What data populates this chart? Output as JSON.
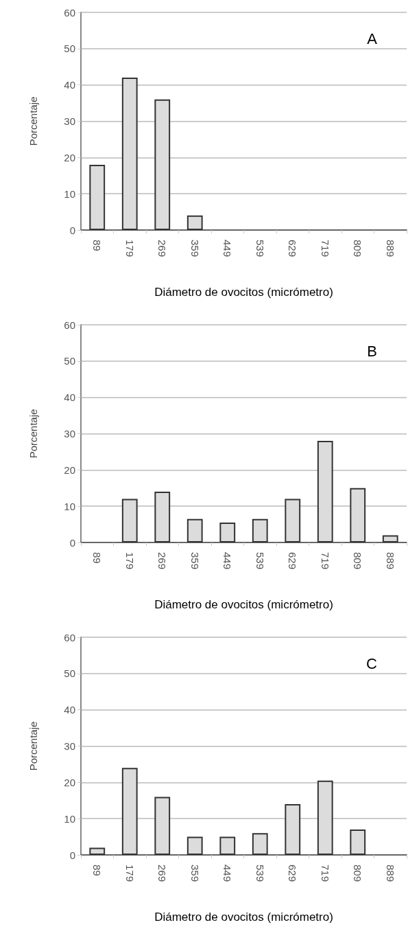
{
  "chart_data": [
    {
      "type": "bar",
      "annotations": [
        "A"
      ],
      "xlabel": "Diámetro de ovocitos (micrómetro)",
      "ylabel": "Porcentaje",
      "categories": [
        "89",
        "179",
        "269",
        "359",
        "449",
        "539",
        "629",
        "719",
        "809",
        "889"
      ],
      "values": [
        18,
        42,
        36,
        4,
        0,
        0,
        0,
        0,
        0,
        0
      ],
      "color": "#dcdcdc",
      "ylim": [
        0,
        60
      ],
      "yticks": [
        0,
        10,
        20,
        30,
        40,
        50,
        60
      ],
      "grid": "y"
    },
    {
      "type": "bar",
      "annotations": [
        "B"
      ],
      "xlabel": "Diámetro de ovocitos (micrómetro)",
      "ylabel": "Porcentaje",
      "categories": [
        "89",
        "179",
        "269",
        "359",
        "449",
        "539",
        "629",
        "719",
        "809",
        "889"
      ],
      "values": [
        0,
        12,
        14,
        6.5,
        5.5,
        6.5,
        12,
        28,
        15,
        2
      ],
      "color": "#dcdcdc",
      "ylim": [
        0,
        60
      ],
      "yticks": [
        0,
        10,
        20,
        30,
        40,
        50,
        60
      ],
      "grid": "y"
    },
    {
      "type": "bar",
      "annotations": [
        "C"
      ],
      "xlabel": "Diámetro de ovocitos (micrómetro)",
      "ylabel": "Porcentaje",
      "categories": [
        "89",
        "179",
        "269",
        "359",
        "449",
        "539",
        "629",
        "719",
        "809",
        "889"
      ],
      "values": [
        2,
        24,
        16,
        5,
        5,
        6,
        14,
        20.5,
        7,
        0
      ],
      "color": "#dcdcdc",
      "ylim": [
        0,
        60
      ],
      "yticks": [
        0,
        10,
        20,
        30,
        40,
        50,
        60
      ],
      "grid": "y"
    }
  ]
}
